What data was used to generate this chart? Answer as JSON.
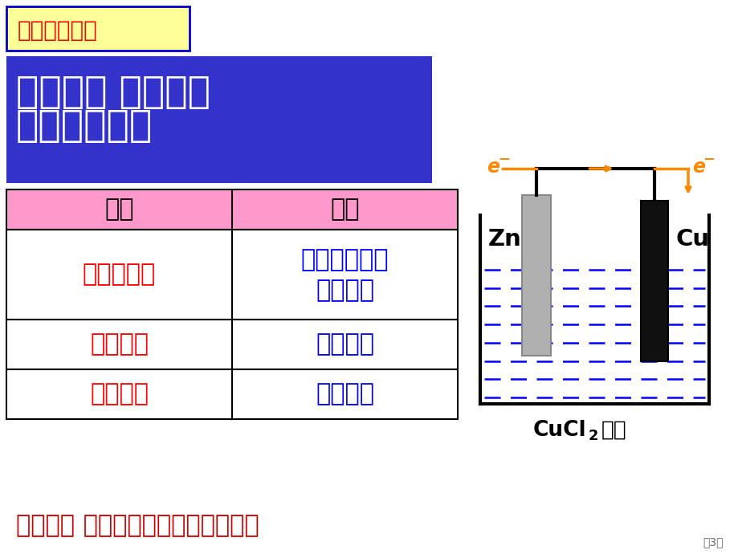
{
  "bg_color": "#ffffff",
  "title_box_color": "#ffff99",
  "title_text": "》复习回顾》",
  "title_text2": "【复习回顾】",
  "title_text_color_border": "#0000cc",
  "title_text_color": "#ff0000",
  "question_box_color": "#3333cc",
  "question_text_line1": "问一问： 原电池电",
  "question_text_line2": "极怎样判断？",
  "question_text_color": "#ffffff",
  "table_header_bg": "#ff99cc",
  "table_header_text_color": "#000000",
  "table_col1_header": "负极",
  "table_col2_header": "正极",
  "table_row1_col1": "较活泼金属",
  "table_row1_col2_line1": "较不活泼金属",
  "table_row1_col2_line2": "或非金属",
  "table_row2_col1": "电子流出",
  "table_row2_col2": "电子流入",
  "table_row3_col1": "氧化反应",
  "table_row3_col2": "还原反应",
  "table_red_color": "#ff0000",
  "table_blue_color": "#0000ff",
  "bottom_text": "原电池： 将化学能转变为电能装置。",
  "bottom_text_color": "#cc0000",
  "electron_color": "#ff8800",
  "diagram_line_color": "#000000",
  "solution_color": "#0000ff",
  "page_num": "第3页"
}
